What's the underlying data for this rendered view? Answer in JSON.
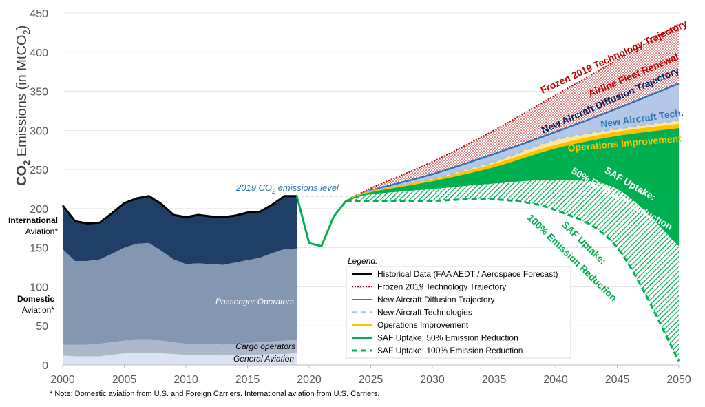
{
  "chart_data": {
    "type": "area",
    "ylabel_main": "CO",
    "ylabel_sub": "2",
    "ylabel_rest": " Emissions (in MtCO",
    "ylabel_sub2": "2",
    "ylabel_end": ")",
    "xlim": [
      2000,
      2050
    ],
    "ylim": [
      0,
      450
    ],
    "x_ticks": [
      "2000",
      "2005",
      "2010",
      "2015",
      "2020",
      "2025",
      "2030",
      "2035",
      "2040",
      "2045",
      "2050"
    ],
    "y_ticks": [
      "0",
      "50",
      "100",
      "150",
      "200",
      "250",
      "300",
      "350",
      "400",
      "450"
    ],
    "historical": {
      "years": [
        2000,
        2001,
        2002,
        2003,
        2004,
        2005,
        2006,
        2007,
        2008,
        2009,
        2010,
        2011,
        2012,
        2013,
        2014,
        2015,
        2016,
        2017,
        2018,
        2019
      ],
      "total": [
        204,
        184,
        181,
        182,
        194,
        207,
        213,
        216,
        206,
        192,
        189,
        192,
        190,
        189,
        191,
        195,
        196,
        205,
        216,
        216
      ],
      "domestic": [
        148,
        133,
        133,
        135,
        142,
        150,
        155,
        156,
        146,
        135,
        129,
        130,
        129,
        128,
        131,
        134,
        137,
        143,
        148,
        149
      ],
      "cargo_top": [
        26,
        26,
        26,
        27,
        29,
        31,
        33,
        33,
        31,
        29,
        27,
        27,
        27,
        26,
        27,
        28,
        29,
        30,
        31,
        32
      ],
      "ga_top": [
        12,
        11,
        11,
        11,
        13,
        15,
        15,
        15,
        15,
        14,
        13,
        13,
        13,
        12,
        13,
        13,
        13,
        14,
        14,
        15
      ]
    },
    "covid_green": {
      "years": [
        2019,
        2020,
        2021,
        2022,
        2023
      ],
      "values": [
        216,
        156,
        152,
        190,
        210
      ]
    },
    "projection_years": [
      2023,
      2025,
      2030,
      2035,
      2040,
      2045,
      2050
    ],
    "frozen": [
      210,
      226,
      260,
      300,
      345,
      390,
      436
    ],
    "fleet_renewal": [
      210,
      224,
      250,
      280,
      310,
      340,
      360
    ],
    "new_diffusion": [
      210,
      223,
      244,
      270,
      298,
      328,
      360
    ],
    "new_tech": [
      210,
      222,
      238,
      260,
      288,
      302,
      313
    ],
    "operations": [
      210,
      221,
      236,
      256,
      280,
      297,
      307
    ],
    "saf50": [
      210,
      220,
      234,
      252,
      276,
      292,
      302
    ],
    "saf50_bottom": [
      210,
      218,
      225,
      232,
      236,
      225,
      152
    ],
    "saf100": [
      210,
      210,
      210,
      212,
      198,
      150,
      5
    ],
    "reference_level": 216,
    "annotations": {
      "frozen": "Frozen 2019 Technology Trajectory",
      "fleet": "Airline Fleet Renewal",
      "diffusion": "New Aircraft Diffusion Trajectory",
      "newtech": "New Aircraft Tech.",
      "ops": "Operations Improvement",
      "saf50_line1": "SAF Uptake:",
      "saf50_line2": "50% Emission Reduction",
      "saf100_line1": "SAF Uptake:",
      "saf100_line2": "100% Emission Reduction",
      "ref_pre": "2019 CO",
      "ref_sub": "2",
      "ref_post": " emissions level",
      "international_1": "International",
      "international_2": "Aviation*",
      "domestic_1": "Domestic",
      "domestic_2": "Aviation*",
      "passenger": "Passenger Operators",
      "cargo": "Cargo operators",
      "general": "General Aviation"
    },
    "legend": {
      "title": "Legend:",
      "items": [
        "Historical Data (FAA AEDT / Aerospace Forecast)",
        "Frozen 2019 Technology Trajectory",
        "New Aircraft Diffusion Trajectory",
        "New Aircraft Technologies",
        "Operations Improvement",
        "SAF Uptake: 50% Emission Reduction",
        "SAF Uptake: 100% Emission Reduction"
      ]
    },
    "colors": {
      "international": "#1f3f66",
      "domestic": "#8497b0",
      "cargo": "#adb9ca",
      "general": "#dae3f3",
      "historical_line": "#000000",
      "frozen": "#c00000",
      "diffusion": "#2e75b6",
      "newtech": "#9dc3e6",
      "operations": "#ffc000",
      "saf": "#00b050",
      "reference": "#2e75b6"
    }
  },
  "footnote": "* Note: Domestic aviation from U.S. and Foreign Carriers. International aviation from U.S. Carriers."
}
